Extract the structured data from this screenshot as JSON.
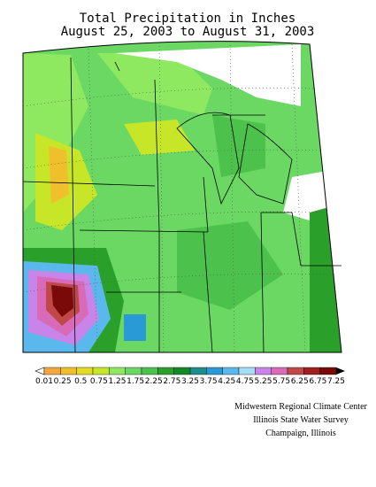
{
  "header": {
    "title": "Total Precipitation in Inches",
    "subtitle": "August 25, 2003 to August 31, 2003"
  },
  "legend": {
    "labels": [
      "0.01",
      "0.25",
      "0.5",
      "0.75",
      "1.25",
      "1.75",
      "2.25",
      "2.75",
      "3.25",
      "3.75",
      "4.25",
      "4.75",
      "5.25",
      "5.75",
      "6.25",
      "6.75",
      "7.25"
    ],
    "colors": [
      "#f4a83c",
      "#f0c02c",
      "#e4dc20",
      "#c8e628",
      "#8ee860",
      "#6ad863",
      "#4cc24c",
      "#2aa02a",
      "#128a28",
      "#1c8c8c",
      "#2a9ad6",
      "#5ab8ec",
      "#a6dcf4",
      "#c884e8",
      "#d86ab8",
      "#c04848",
      "#a02020",
      "#7a0a0a"
    ]
  },
  "credits": [
    "Midwestern Regional Climate Center",
    "Illinois State Water Survey",
    "Champaign, Illinois"
  ]
}
